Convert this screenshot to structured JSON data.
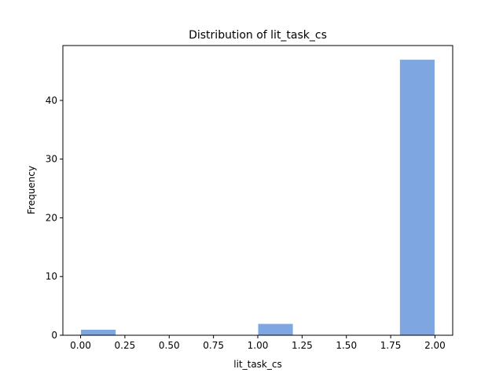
{
  "chart_data": {
    "type": "bar",
    "title": "Distribution of  lit_task_cs",
    "xlabel": "lit_task_cs",
    "ylabel": "Frequency",
    "xlim": [
      -0.1,
      2.1
    ],
    "ylim": [
      0,
      49.35
    ],
    "xticks": [
      0.0,
      0.25,
      0.5,
      0.75,
      1.0,
      1.25,
      1.5,
      1.75,
      2.0
    ],
    "xtick_labels": [
      "0.00",
      "0.25",
      "0.50",
      "0.75",
      "1.00",
      "1.25",
      "1.50",
      "1.75",
      "2.00"
    ],
    "yticks": [
      0,
      10,
      20,
      30,
      40
    ],
    "ytick_labels": [
      "0",
      "10",
      "20",
      "30",
      "40"
    ],
    "bins": [
      {
        "start": 0.0,
        "end": 0.2,
        "count": 1
      },
      {
        "start": 0.2,
        "end": 0.4,
        "count": 0
      },
      {
        "start": 0.4,
        "end": 0.6,
        "count": 0
      },
      {
        "start": 0.6,
        "end": 0.8,
        "count": 0
      },
      {
        "start": 0.8,
        "end": 1.0,
        "count": 0
      },
      {
        "start": 1.0,
        "end": 1.2,
        "count": 2
      },
      {
        "start": 1.2,
        "end": 1.4,
        "count": 0
      },
      {
        "start": 1.4,
        "end": 1.6,
        "count": 0
      },
      {
        "start": 1.6,
        "end": 1.8,
        "count": 0
      },
      {
        "start": 1.8,
        "end": 2.0,
        "count": 47
      }
    ],
    "bar_color": "#7ea6e0",
    "grid": false,
    "legend": "none"
  }
}
